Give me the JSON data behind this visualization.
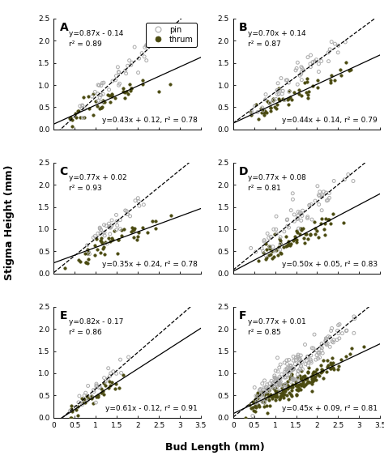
{
  "panels": [
    {
      "label": "A",
      "pin_eq": "y=0.87x - 0.14",
      "pin_r2": "r² = 0.89",
      "pin_slope": 0.87,
      "pin_intercept": -0.14,
      "thrum_eq": "y=0.43x + 0.12, r² = 0.78",
      "thrum_slope": 0.43,
      "thrum_intercept": 0.12,
      "pin_n": 45,
      "thrum_n": 45,
      "pin_xrange": [
        0.5,
        3.0
      ],
      "thrum_xrange": [
        0.3,
        2.8
      ],
      "pin_noise": 0.14,
      "thrum_noise": 0.12
    },
    {
      "label": "B",
      "pin_eq": "y=0.70x + 0.14",
      "pin_r2": "r² = 0.87",
      "pin_slope": 0.7,
      "pin_intercept": 0.14,
      "thrum_eq": "y=0.44x + 0.14, r² = 0.79",
      "thrum_slope": 0.44,
      "thrum_intercept": 0.14,
      "pin_n": 55,
      "thrum_n": 55,
      "pin_xrange": [
        0.4,
        3.2
      ],
      "thrum_xrange": [
        0.3,
        3.0
      ],
      "pin_noise": 0.15,
      "thrum_noise": 0.12
    },
    {
      "label": "C",
      "pin_eq": "y=0.77x + 0.02",
      "pin_r2": "r² = 0.93",
      "pin_slope": 0.77,
      "pin_intercept": 0.02,
      "thrum_eq": "y=0.35x + 0.24, r² = 0.78",
      "thrum_slope": 0.35,
      "thrum_intercept": 0.24,
      "pin_n": 40,
      "thrum_n": 50,
      "pin_xrange": [
        0.3,
        2.8
      ],
      "thrum_xrange": [
        0.2,
        3.2
      ],
      "pin_noise": 0.1,
      "thrum_noise": 0.13
    },
    {
      "label": "D",
      "pin_eq": "y=0.77x + 0.08",
      "pin_r2": "r² = 0.81",
      "pin_slope": 0.77,
      "pin_intercept": 0.08,
      "thrum_eq": "y=0.50x + 0.05, r² = 0.83",
      "thrum_slope": 0.5,
      "thrum_intercept": 0.05,
      "pin_n": 65,
      "thrum_n": 65,
      "pin_xrange": [
        0.3,
        3.2
      ],
      "thrum_xrange": [
        0.3,
        3.2
      ],
      "pin_noise": 0.17,
      "thrum_noise": 0.13
    },
    {
      "label": "E",
      "pin_eq": "y=0.82x - 0.17",
      "pin_r2": "r² = 0.86",
      "pin_slope": 0.82,
      "pin_intercept": -0.17,
      "thrum_eq": "y=0.61x - 0.12, r² = 0.91",
      "thrum_slope": 0.61,
      "thrum_intercept": -0.12,
      "pin_n": 30,
      "thrum_n": 35,
      "pin_xrange": [
        0.3,
        2.2
      ],
      "thrum_xrange": [
        0.2,
        2.0
      ],
      "pin_noise": 0.1,
      "thrum_noise": 0.08
    },
    {
      "label": "F",
      "pin_eq": "y=0.77x + 0.01",
      "pin_r2": "r² = 0.85",
      "pin_slope": 0.77,
      "pin_intercept": 0.01,
      "thrum_eq": "y=0.45x + 0.09, r² = 0.81",
      "thrum_slope": 0.45,
      "thrum_intercept": 0.09,
      "pin_n": 180,
      "thrum_n": 180,
      "pin_xrange": [
        0.3,
        3.2
      ],
      "thrum_xrange": [
        0.2,
        3.2
      ],
      "pin_noise": 0.15,
      "thrum_noise": 0.13
    }
  ],
  "xlabel": "Bud Length (mm)",
  "ylabel": "Stigma Height (mm)",
  "pin_face": "none",
  "pin_edge": "#aaaaaa",
  "thrum_face": "#4a4a10",
  "thrum_edge": "#4a4a10",
  "bg_color": "#ffffff",
  "xlim": [
    0,
    3.5
  ],
  "ylim": [
    0,
    2.5
  ],
  "xticks": [
    0,
    0.5,
    1.0,
    1.5,
    2.0,
    2.5,
    3.0,
    3.5
  ],
  "yticks": [
    0.0,
    0.5,
    1.0,
    1.5,
    2.0,
    2.5
  ],
  "tick_labels_x": [
    "0",
    "0.5",
    "1",
    "1.5",
    "2",
    "2.5",
    "3",
    "3.5"
  ],
  "tick_labels_y": [
    "0.0",
    "0.5",
    "1.0",
    "1.5",
    "2.0",
    "2.5"
  ]
}
